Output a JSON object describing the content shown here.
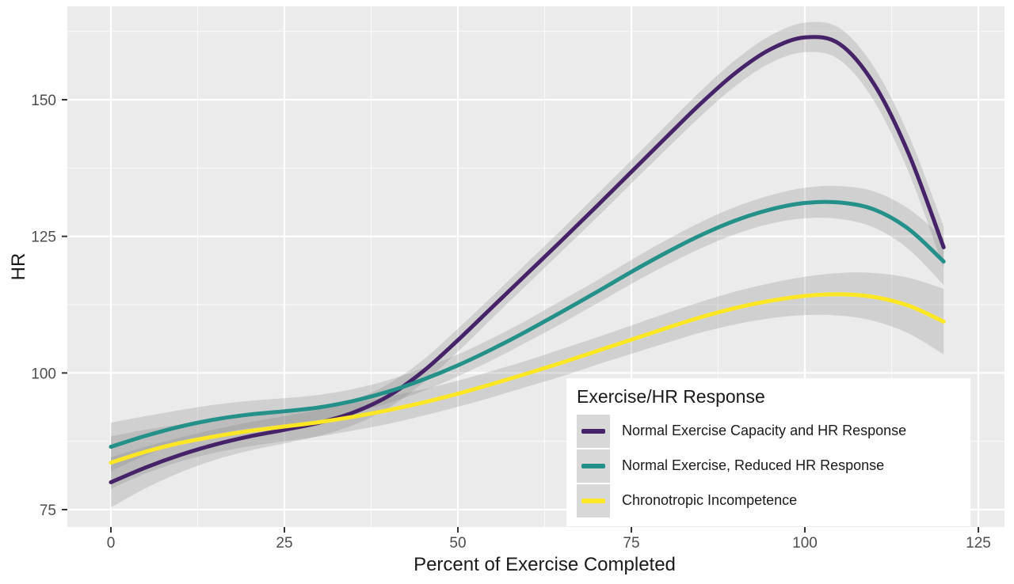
{
  "axes": {
    "x_title": "Percent of Exercise Completed",
    "y_title": "HR"
  },
  "legend": {
    "title": "Exercise/HR Response"
  },
  "chart_data": {
    "type": "line",
    "title": "",
    "xlabel": "Percent of Exercise Completed",
    "ylabel": "HR",
    "x_ticks": [
      0,
      25,
      50,
      75,
      100,
      125
    ],
    "y_ticks": [
      75,
      100,
      125,
      150
    ],
    "x_minor_ticks": [
      12.5,
      37.5,
      62.5,
      87.5,
      112.5
    ],
    "y_minor_ticks": [
      87.5,
      112.5,
      137.5,
      162.5
    ],
    "xlim": [
      -6.3,
      128.8
    ],
    "ylim": [
      71.7,
      167.1
    ],
    "grid": {
      "major": true,
      "minor": true,
      "color": "#ffffff"
    },
    "panel_bg": "#ebebeb",
    "band_color": "#808080",
    "band_opacity": 0.25,
    "legend_position": "inside-bottom-right",
    "x": [
      0,
      5,
      10,
      15,
      20,
      25,
      30,
      35,
      40,
      45,
      50,
      55,
      60,
      65,
      70,
      75,
      80,
      85,
      90,
      95,
      100,
      105,
      110,
      115,
      120
    ],
    "series": [
      {
        "name": "Normal Exercise Capacity and HR Response",
        "color": "#462369",
        "values": [
          80.0,
          82.7,
          85.0,
          86.9,
          88.4,
          89.6,
          90.9,
          92.8,
          95.8,
          100.3,
          106.0,
          112.1,
          118.2,
          124.3,
          130.5,
          136.8,
          143.1,
          149.3,
          154.9,
          159.2,
          161.4,
          160.2,
          152.8,
          140.0,
          123.0
        ],
        "ci": [
          4.6,
          3.8,
          3.2,
          2.8,
          2.6,
          2.5,
          2.4,
          2.3,
          2.2,
          2.1,
          2.1,
          2.0,
          2.0,
          2.0,
          2.1,
          2.1,
          2.2,
          2.3,
          2.4,
          2.5,
          2.7,
          2.9,
          3.1,
          3.4,
          3.8
        ]
      },
      {
        "name": "Normal Exercise, Reduced HR Response",
        "color": "#23908a",
        "values": [
          86.5,
          88.5,
          90.2,
          91.5,
          92.4,
          93.0,
          93.7,
          94.9,
          96.6,
          98.8,
          101.4,
          104.4,
          107.7,
          111.2,
          114.8,
          118.5,
          122.0,
          125.2,
          127.9,
          129.9,
          131.1,
          131.2,
          129.9,
          126.3,
          120.4
        ],
        "ci": [
          4.4,
          3.6,
          3.0,
          2.7,
          2.5,
          2.4,
          2.3,
          2.2,
          2.1,
          2.1,
          2.0,
          2.0,
          2.0,
          2.1,
          2.1,
          2.2,
          2.3,
          2.4,
          2.5,
          2.6,
          2.8,
          3.0,
          3.3,
          3.7,
          4.3
        ]
      },
      {
        "name": "Chronotropic Incompetence",
        "color": "#fde725",
        "values": [
          83.6,
          85.6,
          87.2,
          88.4,
          89.4,
          90.2,
          91.0,
          92.0,
          93.2,
          94.6,
          96.2,
          98.0,
          99.9,
          101.9,
          104.0,
          106.1,
          108.2,
          110.2,
          111.9,
          113.2,
          114.1,
          114.4,
          113.9,
          112.3,
          109.4
        ],
        "ci": [
          4.8,
          4.0,
          3.4,
          3.0,
          2.8,
          2.7,
          2.6,
          2.5,
          2.5,
          2.4,
          2.4,
          2.4,
          2.4,
          2.5,
          2.5,
          2.6,
          2.7,
          2.8,
          3.0,
          3.2,
          3.5,
          3.9,
          4.4,
          5.1,
          6.0
        ]
      }
    ]
  }
}
